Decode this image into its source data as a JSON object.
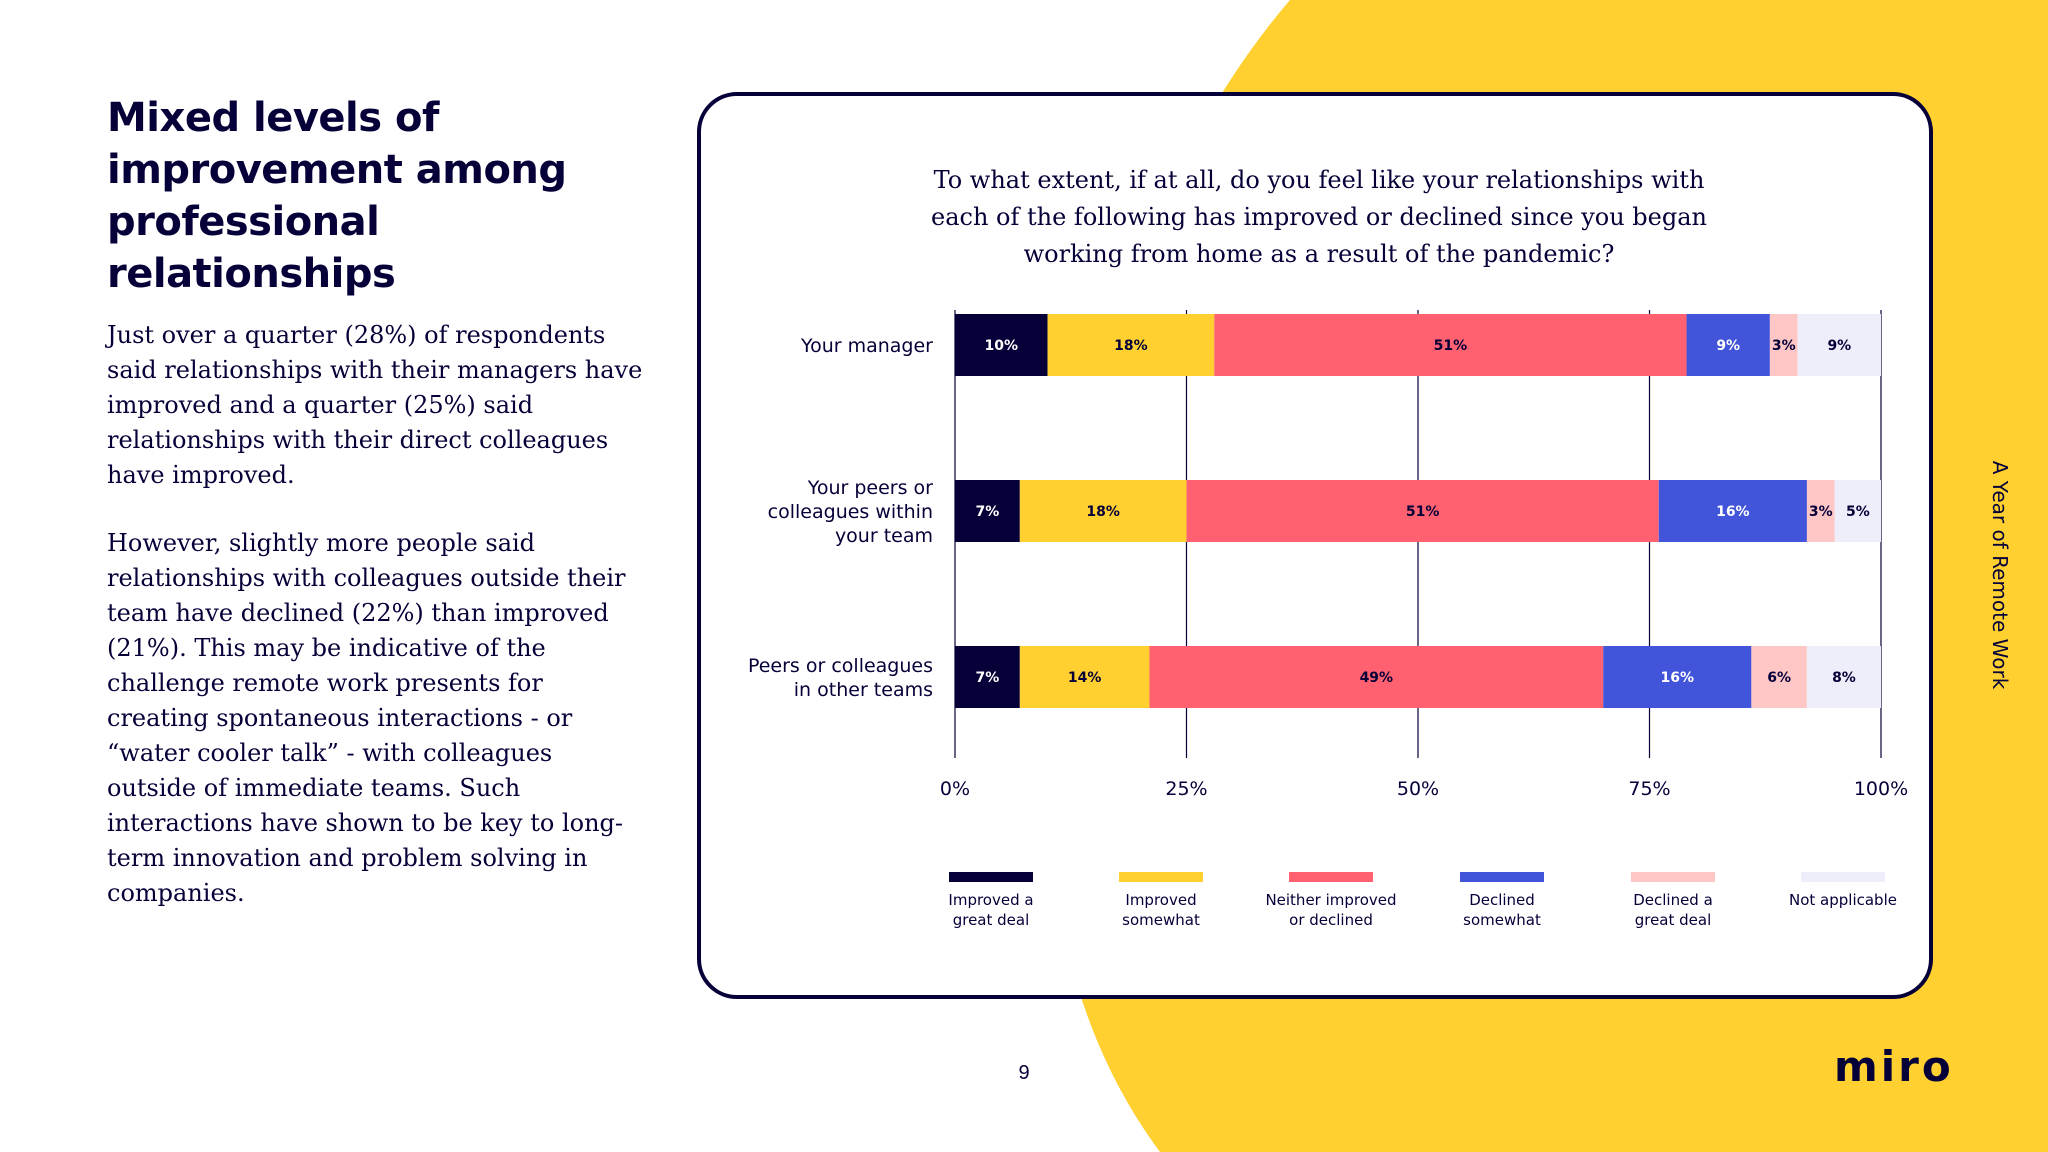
{
  "heading": "Mixed levels of improvement among professional relationships",
  "paragraphs": [
    "Just over a quarter (28%) of respondents said relationships with their managers have improved and a quarter (25%) said relationships with their direct colleagues have improved.",
    "However, slightly more people said relationships with colleagues outside their team have declined (22%) than improved (21%). This may be indicative of the challenge remote work presents for creating spontaneous interactions - or “water cooler talk” - with colleagues outside of immediate teams. Such interactions have shown to be key to long-term innovation and problem solving in companies."
  ],
  "side_title": "A Year of Remote Work",
  "page_number": "9",
  "logo_text": "miro",
  "colors": {
    "background_accent": "#FFD02F",
    "text": "#050038"
  },
  "chart_data": {
    "type": "bar",
    "orientation": "horizontal",
    "stacked": true,
    "title_lines": [
      "To what extent, if at all, do you feel like your relationships with",
      "each of the following has improved or declined since you began",
      "working from home as a result of the pandemic?"
    ],
    "categories": [
      [
        "Your manager"
      ],
      [
        "Your peers or",
        "colleagues within",
        "your team"
      ],
      [
        "Peers or colleagues",
        "in other teams"
      ]
    ],
    "series": [
      {
        "name": [
          "Improved a",
          "great deal"
        ],
        "color": "#050038",
        "label_color": "#ffffff",
        "values": [
          10,
          7,
          7
        ]
      },
      {
        "name": [
          "Improved",
          "somewhat"
        ],
        "color": "#FFD02F",
        "label_color": "#050038",
        "values": [
          18,
          18,
          14
        ]
      },
      {
        "name": [
          "Neither improved",
          "or declined"
        ],
        "color": "#FF6170",
        "label_color": "#050038",
        "values": [
          51,
          51,
          49
        ]
      },
      {
        "name": [
          "Declined",
          "somewhat"
        ],
        "color": "#4255DA",
        "label_color": "#ffffff",
        "values": [
          9,
          16,
          16
        ]
      },
      {
        "name": [
          "Declined a",
          "great deal"
        ],
        "color": "#FFC6C6",
        "label_color": "#050038",
        "values": [
          3,
          3,
          6
        ]
      },
      {
        "name": [
          "Not applicable"
        ],
        "color": "#EEEEFA",
        "label_color": "#050038",
        "values": [
          9,
          5,
          8
        ]
      }
    ],
    "xlim": [
      0,
      100
    ],
    "xticks": [
      0,
      25,
      50,
      75,
      100
    ],
    "xtick_labels": [
      "0%",
      "25%",
      "50%",
      "75%",
      "100%"
    ],
    "value_suffix": "%",
    "grid": true,
    "legend_position": "bottom"
  }
}
